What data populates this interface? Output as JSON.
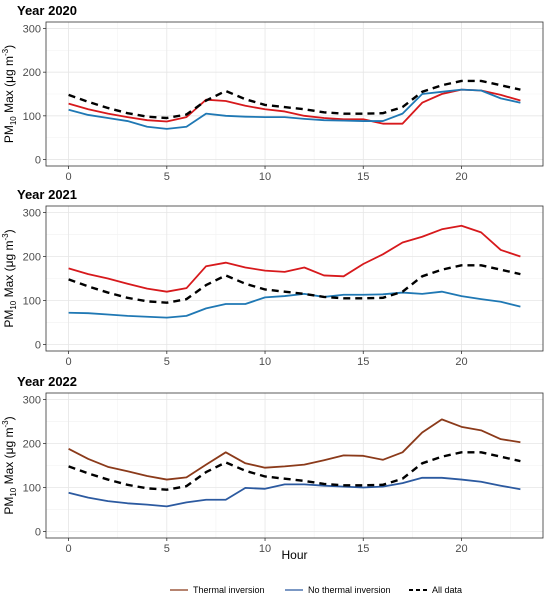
{
  "chart_data": {
    "type": "line",
    "xlabel": "Hour",
    "ylabel": "PM10 Max (μg m-3)",
    "ylabel_parts": {
      "pm": "PM",
      "sub": "10",
      "mid": " Max (μg m",
      "sup": "-3",
      "end": ")"
    },
    "xlim": [
      0,
      23
    ],
    "ylim": [
      0,
      300
    ],
    "x_ticks": [
      "0",
      "5",
      "10",
      "15",
      "20"
    ],
    "y_ticks": [
      "0",
      "100",
      "200",
      "300"
    ],
    "legend": [
      {
        "name": "Thermal inversion",
        "style": "solid"
      },
      {
        "name": "No thermal inversion",
        "style": "solid"
      },
      {
        "name": "All data",
        "style": "dashed"
      }
    ],
    "legend_position": "bottom",
    "grid": true,
    "panels": [
      {
        "title": "Year 2020",
        "colors": {
          "thermal": "#d7191c",
          "no_thermal": "#1f78b4",
          "all": "#000000"
        },
        "x": [
          0,
          1,
          2,
          3,
          4,
          5,
          6,
          7,
          8,
          9,
          10,
          11,
          12,
          13,
          14,
          15,
          16,
          17,
          18,
          19,
          20,
          21,
          22,
          23
        ],
        "series": [
          {
            "name": "Thermal inversion",
            "values": [
              128,
              115,
              105,
              97,
              90,
              87,
              97,
              137,
              134,
              123,
              115,
              110,
              100,
              95,
              92,
              92,
              82,
              82,
              130,
              150,
              160,
              158,
              148,
              135
            ]
          },
          {
            "name": "No thermal inversion",
            "values": [
              114,
              102,
              95,
              88,
              75,
              70,
              75,
              105,
              100,
              98,
              97,
              97,
              93,
              90,
              89,
              88,
              88,
              105,
              150,
              155,
              160,
              158,
              140,
              130
            ]
          },
          {
            "name": "All data",
            "values": [
              148,
              132,
              118,
              106,
              98,
              95,
              103,
              135,
              157,
              138,
              125,
              120,
              115,
              108,
              105,
              105,
              106,
              120,
              155,
              170,
              180,
              180,
              170,
              160
            ]
          }
        ]
      },
      {
        "title": "Year 2021",
        "colors": {
          "thermal": "#d7191c",
          "no_thermal": "#1f78b4",
          "all": "#000000"
        },
        "x": [
          0,
          1,
          2,
          3,
          4,
          5,
          6,
          7,
          8,
          9,
          10,
          11,
          12,
          13,
          14,
          15,
          16,
          17,
          18,
          19,
          20,
          21,
          22,
          23
        ],
        "series": [
          {
            "name": "Thermal inversion",
            "values": [
              173,
              160,
              150,
              138,
              127,
              120,
              128,
              178,
              186,
              175,
              168,
              165,
              175,
              157,
              155,
              183,
              205,
              232,
              245,
              262,
              270,
              255,
              215,
              200
            ]
          },
          {
            "name": "No thermal inversion",
            "values": [
              72,
              71,
              68,
              65,
              63,
              61,
              65,
              82,
              92,
              92,
              107,
              110,
              115,
              108,
              113,
              113,
              114,
              118,
              115,
              120,
              110,
              103,
              97,
              86
            ]
          },
          {
            "name": "All data",
            "values": [
              148,
              132,
              118,
              106,
              98,
              95,
              103,
              135,
              157,
              138,
              125,
              120,
              115,
              108,
              105,
              105,
              106,
              120,
              155,
              170,
              180,
              180,
              170,
              160
            ]
          }
        ]
      },
      {
        "title": "Year 2022",
        "colors": {
          "thermal": "#8b3a1a",
          "no_thermal": "#2c5aa0",
          "all": "#000000"
        },
        "x": [
          0,
          1,
          2,
          3,
          4,
          5,
          6,
          7,
          8,
          9,
          10,
          11,
          12,
          13,
          14,
          15,
          16,
          17,
          18,
          19,
          20,
          21,
          22,
          23
        ],
        "series": [
          {
            "name": "Thermal inversion",
            "values": [
              188,
              165,
              147,
              137,
              126,
              118,
              123,
              152,
              180,
              155,
              145,
              148,
              152,
              162,
              173,
              172,
              163,
              180,
              225,
              255,
              238,
              230,
              210,
              203
            ]
          },
          {
            "name": "No thermal inversion",
            "values": [
              88,
              77,
              69,
              64,
              61,
              57,
              66,
              72,
              72,
              99,
              97,
              107,
              107,
              104,
              102,
              100,
              102,
              110,
              122,
              122,
              118,
              113,
              104,
              96
            ]
          },
          {
            "name": "All data",
            "values": [
              148,
              132,
              118,
              106,
              98,
              95,
              103,
              135,
              157,
              138,
              125,
              120,
              115,
              108,
              105,
              105,
              106,
              120,
              155,
              170,
              180,
              180,
              170,
              160
            ]
          }
        ]
      }
    ]
  },
  "legend_colors": {
    "thermal": "#8b3a1a",
    "no_thermal": "#2c5aa0",
    "all": "#000000"
  }
}
